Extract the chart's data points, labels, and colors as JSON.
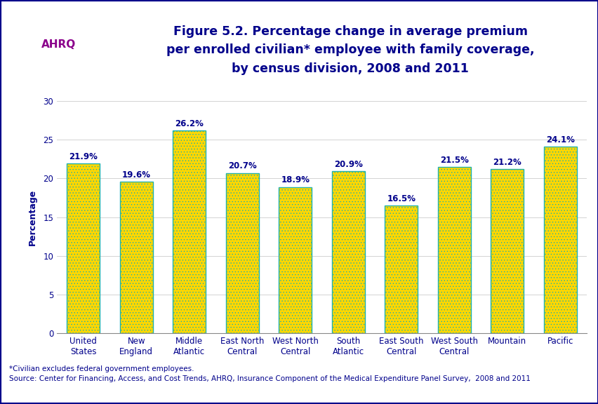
{
  "title": "Figure 5.2. Percentage change in average premium\nper enrolled civilian* employee with family coverage,\nby census division, 2008 and 2011",
  "categories": [
    "United\nStates",
    "New\nEngland",
    "Middle\nAtlantic",
    "East North\nCentral",
    "West North\nCentral",
    "South\nAtlantic",
    "East South\nCentral",
    "West South\nCentral",
    "Mountain",
    "Pacific"
  ],
  "values": [
    21.9,
    19.6,
    26.2,
    20.7,
    18.9,
    20.9,
    16.5,
    21.5,
    21.2,
    24.1
  ],
  "bar_face_color": "#FFD700",
  "bar_edge_color": "#20B2AA",
  "bar_linewidth": 1.0,
  "bar_hatch": "....",
  "bar_hatch_color": "#FFB800",
  "ylabel": "Percentage",
  "ylim": [
    0,
    30
  ],
  "yticks": [
    0,
    5,
    10,
    15,
    20,
    25,
    30
  ],
  "value_label_color": "#00008B",
  "axis_label_color": "#00008B",
  "tick_label_color": "#00008B",
  "title_color": "#00008B",
  "background_color": "#FFFFFF",
  "border_color": "#00008B",
  "footer_text": "*Civilian excludes federal government employees.\nSource: Center for Financing, Access, and Cost Trends, AHRQ, Insurance Component of the Medical Expenditure Panel Survey,  2008 and 2011",
  "footer_color": "#00008B",
  "title_fontsize": 12.5,
  "label_fontsize": 9,
  "tick_fontsize": 8.5,
  "value_fontsize": 8.5,
  "footer_fontsize": 7.5,
  "header_bg": "#FFFFFF",
  "sep_line_color": "#00008B",
  "grid_color": "#CCCCCC"
}
